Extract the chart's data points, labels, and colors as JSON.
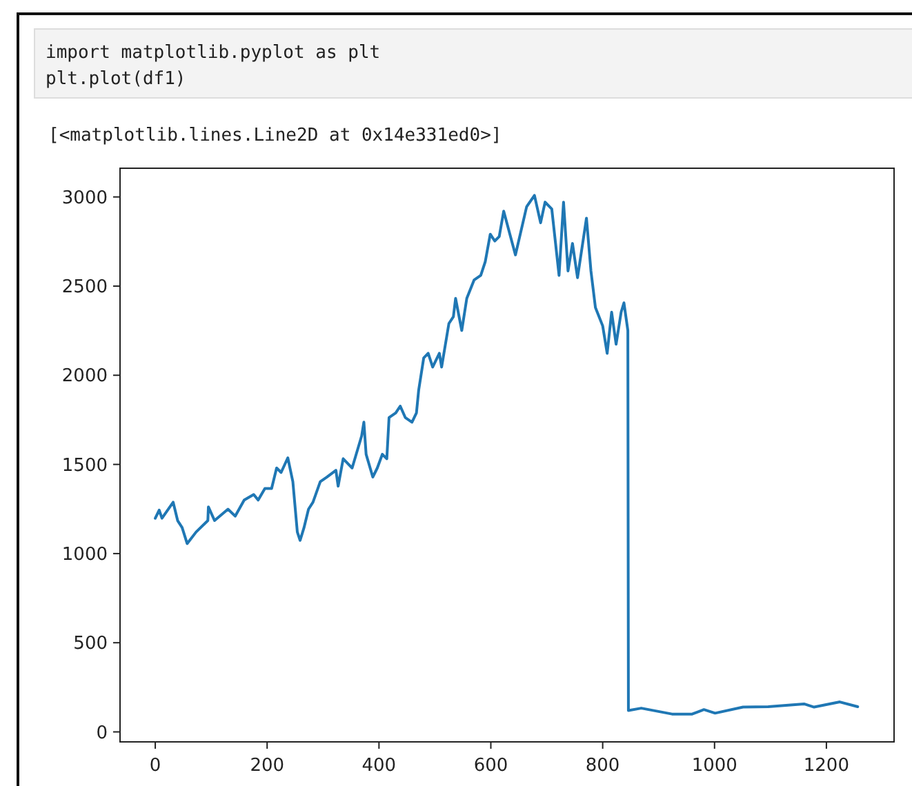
{
  "chart_data": {
    "type": "line",
    "annotations": [
      "import matplotlib.pyplot as plt",
      "plt.plot(df1)",
      "[<matplotlib.lines.Line2D at 0x14e331ed0>]"
    ],
    "xlim": [
      -63,
      1321
    ],
    "ylim": [
      -56,
      3161
    ],
    "xticks": [
      0,
      200,
      400,
      600,
      800,
      1000,
      1200
    ],
    "yticks": [
      0,
      500,
      1000,
      1500,
      2000,
      2500,
      3000
    ],
    "grid": false,
    "marker": "none",
    "line_style": "solid",
    "series": [
      {
        "color": "#1f77b4",
        "x": [
          0,
          7,
          12,
          32,
          40,
          48,
          57,
          73,
          94,
          95,
          106,
          130,
          143,
          159,
          176,
          184,
          196,
          208,
          217,
          225,
          237,
          246,
          254,
          259,
          266,
          274,
          282,
          295,
          307,
          323,
          327,
          336,
          352,
          369,
          373,
          377,
          389,
          397,
          406,
          414,
          418,
          430,
          438,
          447,
          459,
          467,
          471,
          480,
          488,
          496,
          508,
          512,
          525,
          533,
          537,
          548,
          557,
          570,
          582,
          590,
          599,
          607,
          615,
          623,
          644,
          664,
          678,
          689,
          697,
          709,
          722,
          730,
          738,
          746,
          755,
          771,
          779,
          787,
          800,
          808,
          816,
          824,
          833,
          838,
          845,
          846,
          869,
          924,
          960,
          981,
          1001,
          1051,
          1096,
          1160,
          1178,
          1224,
          1256
        ],
        "values": [
          1198,
          1244,
          1198,
          1288,
          1185,
          1146,
          1056,
          1121,
          1185,
          1262,
          1185,
          1249,
          1210,
          1300,
          1331,
          1300,
          1365,
          1365,
          1480,
          1455,
          1537,
          1403,
          1121,
          1074,
          1146,
          1249,
          1288,
          1403,
          1429,
          1467,
          1378,
          1532,
          1480,
          1660,
          1737,
          1557,
          1429,
          1480,
          1557,
          1532,
          1763,
          1789,
          1827,
          1763,
          1737,
          1789,
          1917,
          2097,
          2123,
          2046,
          2123,
          2046,
          2290,
          2328,
          2431,
          2251,
          2431,
          2534,
          2560,
          2637,
          2791,
          2753,
          2778,
          2920,
          2675,
          2945,
          3009,
          2855,
          2971,
          2932,
          2560,
          2971,
          2585,
          2739,
          2547,
          2881,
          2585,
          2380,
          2277,
          2123,
          2354,
          2174,
          2354,
          2406,
          2251,
          120,
          133,
          100,
          100,
          125,
          105,
          139,
          141,
          157,
          139,
          168,
          141
        ]
      }
    ]
  }
}
